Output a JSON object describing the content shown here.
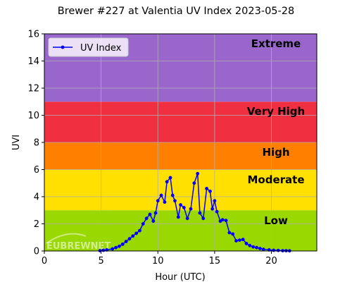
{
  "chart_data": {
    "type": "line",
    "title": "Brewer #227 at Valentia UV Index 2023-05-28",
    "xlabel": "Hour (UTC)",
    "ylabel": "UVI",
    "xlim": [
      0,
      24
    ],
    "ylim": [
      0,
      16
    ],
    "xticks": [
      0,
      5,
      10,
      15,
      20
    ],
    "yticks": [
      0,
      2,
      4,
      6,
      8,
      10,
      12,
      14,
      16
    ],
    "grid": true,
    "legend": {
      "position": "top-left"
    },
    "series": [
      {
        "name": "UV Index",
        "color": "#0000ff",
        "x": [
          4.9,
          5.2,
          5.5,
          6.0,
          6.3,
          6.6,
          6.9,
          7.2,
          7.5,
          7.8,
          8.1,
          8.4,
          8.7,
          9.0,
          9.3,
          9.6,
          9.8,
          10.0,
          10.3,
          10.6,
          10.8,
          11.1,
          11.3,
          11.5,
          11.8,
          12.0,
          12.3,
          12.6,
          12.9,
          13.2,
          13.5,
          13.7,
          14.0,
          14.3,
          14.6,
          14.8,
          15.0,
          15.2,
          15.5,
          15.7,
          16.0,
          16.3,
          16.6,
          16.9,
          17.2,
          17.5,
          17.8,
          18.1,
          18.4,
          18.7,
          19.0,
          19.3,
          19.8,
          20.2,
          20.6,
          21.0,
          21.3,
          21.6
        ],
        "values": [
          0.02,
          0.05,
          0.08,
          0.15,
          0.25,
          0.35,
          0.5,
          0.7,
          0.9,
          1.1,
          1.3,
          1.5,
          2.0,
          2.4,
          2.7,
          2.2,
          2.8,
          3.7,
          4.1,
          3.6,
          5.1,
          5.4,
          4.1,
          3.7,
          2.5,
          3.4,
          3.2,
          2.4,
          3.1,
          5.0,
          5.7,
          2.8,
          2.4,
          4.6,
          4.4,
          3.1,
          3.7,
          2.9,
          2.2,
          2.3,
          2.25,
          1.35,
          1.25,
          0.75,
          0.8,
          0.85,
          0.55,
          0.4,
          0.3,
          0.25,
          0.18,
          0.12,
          0.08,
          0.05,
          0.04,
          0.02,
          0.02,
          0.01
        ]
      }
    ],
    "bands": [
      {
        "label": "Low",
        "from": 0,
        "to": 3,
        "color": "#99d800"
      },
      {
        "label": "Moderate",
        "from": 3,
        "to": 6,
        "color": "#ffe000"
      },
      {
        "label": "High",
        "from": 6,
        "to": 8,
        "color": "#ff7f00"
      },
      {
        "label": "Very High",
        "from": 8,
        "to": 11,
        "color": "#f03040"
      },
      {
        "label": "Extreme",
        "from": 11,
        "to": 16,
        "color": "#9966cc"
      }
    ]
  },
  "watermark": "EUBREWNET"
}
